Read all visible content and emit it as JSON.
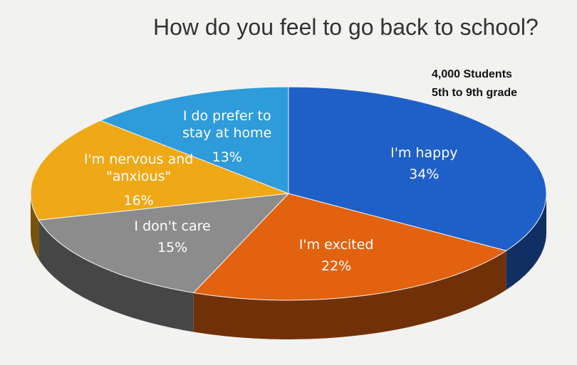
{
  "chart_data": {
    "type": "pie",
    "title": "How do you feel to go back to school?",
    "annotations": [
      "4,000 Students",
      "5th to 9th grade"
    ],
    "categories": [
      "I'm happy",
      "I'm excited",
      "I don't care",
      "I'm nervous and \"anxious\"",
      "I do prefer to stay at home"
    ],
    "values": [
      34,
      22,
      15,
      16,
      13
    ],
    "value_labels": [
      "34%",
      "22%",
      "15%",
      "16%",
      "13%"
    ],
    "colors": [
      "#1f5fc8",
      "#e2620f",
      "#8c8c8c",
      "#efa816",
      "#2e9bda"
    ]
  }
}
